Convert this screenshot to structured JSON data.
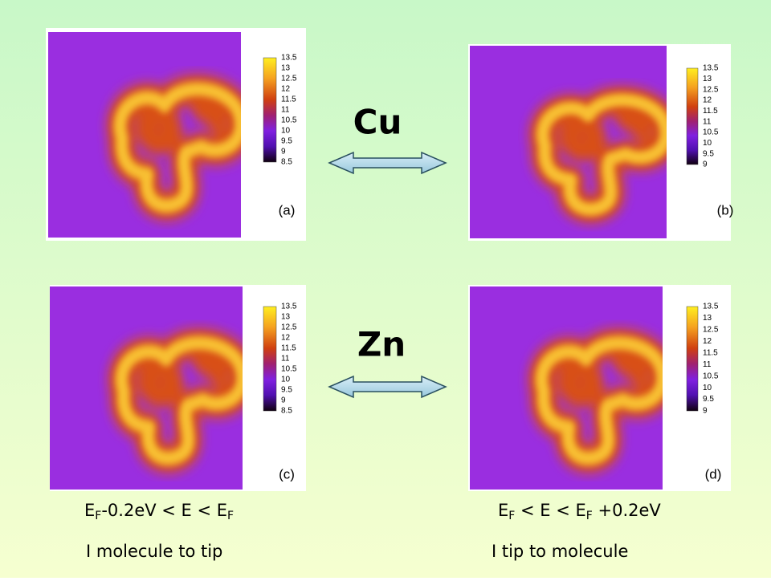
{
  "elements": {
    "cu": "Cu",
    "zn": "Zn"
  },
  "panels": [
    {
      "label": "(a)",
      "ticks": [
        13.5,
        13,
        12.5,
        12,
        11.5,
        11,
        10.5,
        10,
        9.5,
        9,
        8.5
      ]
    },
    {
      "label": "(b)",
      "ticks": [
        13.5,
        13,
        12.5,
        12,
        11.5,
        11,
        10.5,
        10,
        9.5,
        9
      ]
    },
    {
      "label": "(c)",
      "ticks": [
        13.5,
        13,
        12.5,
        12,
        11.5,
        11,
        10.5,
        10,
        9.5,
        9,
        8.5
      ]
    },
    {
      "label": "(d)",
      "ticks": [
        13.5,
        13,
        12.5,
        12,
        11.5,
        11,
        10.5,
        10,
        9.5,
        9
      ]
    }
  ],
  "captions": [
    {
      "energy": [
        {
          "text": "E"
        },
        {
          "sub": "F"
        },
        {
          "text": "-0.2eV < E < E"
        },
        {
          "sub": "F"
        }
      ],
      "current": "I molecule to tip"
    },
    {
      "energy": [
        {
          "text": "E"
        },
        {
          "sub": "F"
        },
        {
          "text": " < E < E"
        },
        {
          "sub": "F"
        },
        {
          "text": " +0.2eV"
        }
      ],
      "current": "I tip to molecule"
    }
  ]
}
